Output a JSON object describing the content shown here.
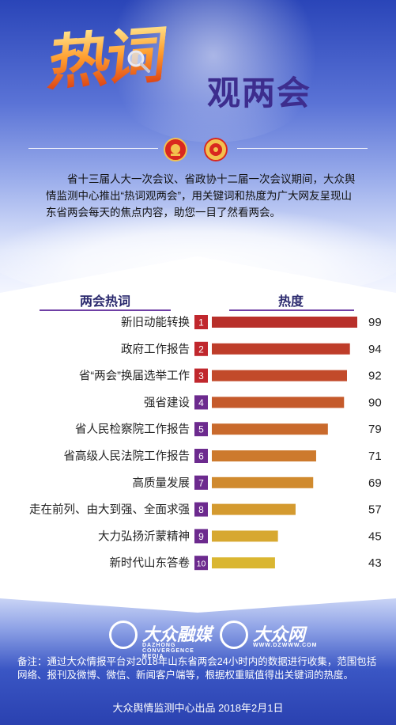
{
  "header": {
    "title_big": "热词",
    "title_small": "观两会",
    "intro": "省十三届人大一次会议、省政协十二届一次会议期间，大众舆情监测中心推出“热词观两会”，用关键词和热度为广大网友呈现山东省两会每天的焦点内容，助您一目了然看两会。"
  },
  "columns": {
    "left": "两会热词",
    "right": "热度"
  },
  "chart_data": {
    "type": "bar",
    "orientation": "horizontal",
    "categories": [
      "新旧动能转换",
      "政府工作报告",
      "省“两会”换届选举工作",
      "强省建设",
      "省人民检察院工作报告",
      "省高级人民法院工作报告",
      "高质量发展",
      "走在前列、由大到强、全面求强",
      "大力弘扬沂蒙精神",
      "新时代山东答卷"
    ],
    "ranks": [
      "1",
      "2",
      "3",
      "4",
      "5",
      "6",
      "7",
      "8",
      "9",
      "10"
    ],
    "values": [
      99,
      94,
      92,
      90,
      79,
      71,
      69,
      57,
      45,
      43
    ],
    "xlim": [
      0,
      100
    ],
    "bar_colors": [
      "#b8302a",
      "#be3d2a",
      "#c24a2a",
      "#c55a2b",
      "#c96a2c",
      "#cd7a2d",
      "#d08a2e",
      "#d49a2f",
      "#d7a830",
      "#dab631"
    ],
    "rank_colors": [
      "#c0272d",
      "#c0272d",
      "#c0272d",
      "#6c2a8e",
      "#6c2a8e",
      "#6c2a8e",
      "#6c2a8e",
      "#6c2a8e",
      "#6c2a8e",
      "#6c2a8e"
    ]
  },
  "footer": {
    "logo1_name": "大众融媒",
    "logo1_sub": "DAZHONG CONVERGENCE MEDIA",
    "logo2_name": "大众网",
    "logo2_sub": "WWW.DZWWW.COM",
    "note": "备注：通过大众情报平台对2018年山东省两会24小时内的数据进行收集，范围包括网络、报刊及微博、微信、新闻客户端等，根据权重赋值得出关键词的热度。",
    "source": "大众舆情监测中心出品 2018年2月1日"
  },
  "colors": {
    "header_top": "#2a45b8",
    "title_purple": "#3d2d8e",
    "rule_purple": "#6f3fa5",
    "footer_blue": "#2a41b0"
  }
}
